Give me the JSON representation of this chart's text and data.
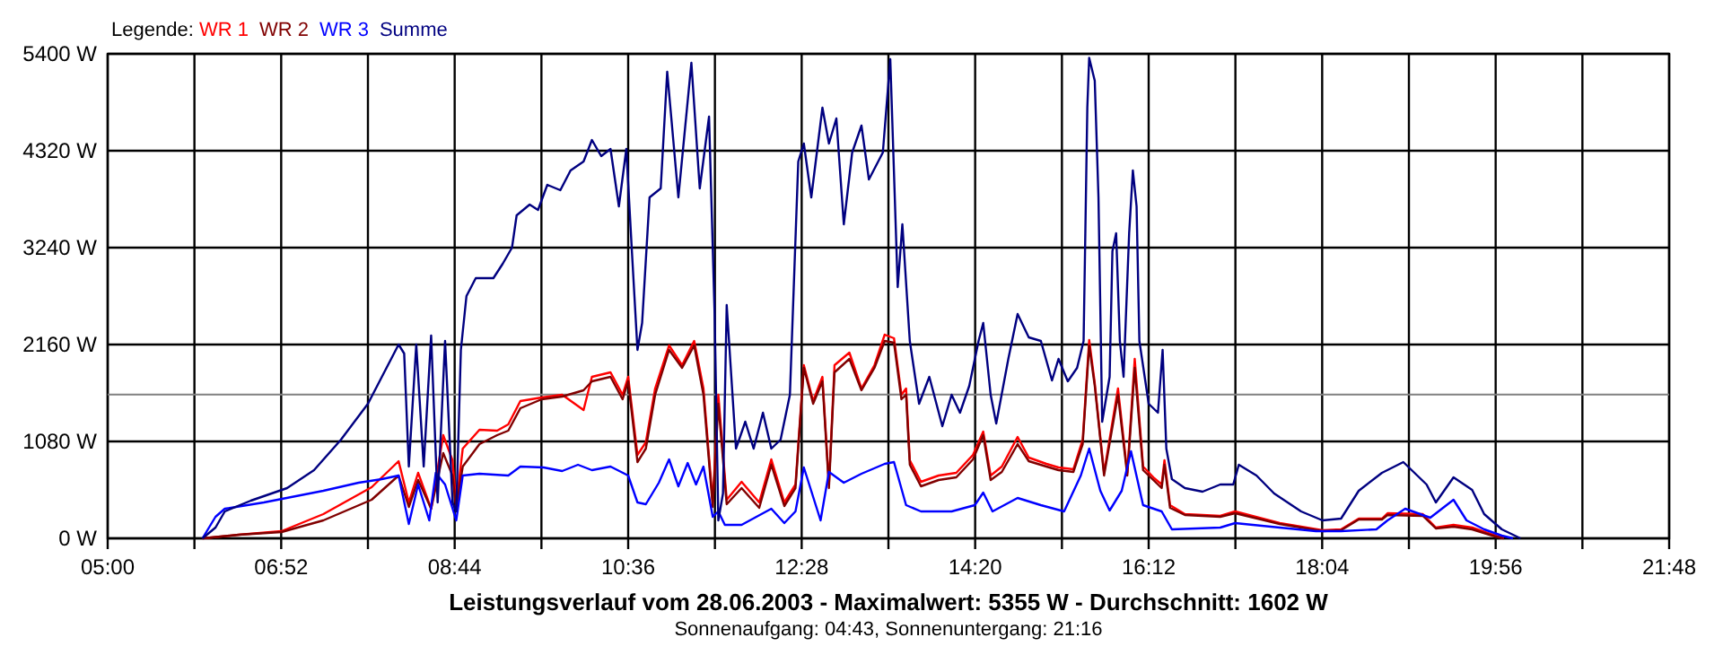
{
  "chart_data": {
    "type": "line",
    "title": "Leistungsverlauf vom 28.06.2003 - Maximalwert: 5355 W - Durchschnitt: 1602 W",
    "subtitle": "Sonnenaufgang: 04:43, Sonnenuntergang: 21:16",
    "legend_title": "Legende:",
    "legend": "top left",
    "grid": true,
    "marker": "none",
    "line_style": "solid",
    "xlim": [
      5,
      21.8
    ],
    "ylim": [
      0,
      5400
    ],
    "xticks": [
      {
        "value": 5,
        "label": "05:00"
      },
      {
        "value": 5.9333,
        "label": null
      },
      {
        "value": 6.8667,
        "label": "06:52"
      },
      {
        "value": 7.8,
        "label": null
      },
      {
        "value": 8.7333,
        "label": "08:44"
      },
      {
        "value": 9.6667,
        "label": null
      },
      {
        "value": 10.6,
        "label": "10:36"
      },
      {
        "value": 11.5333,
        "label": null
      },
      {
        "value": 12.4667,
        "label": "12:28"
      },
      {
        "value": 13.4,
        "label": null
      },
      {
        "value": 14.3333,
        "label": "14:20"
      },
      {
        "value": 15.2667,
        "label": null
      },
      {
        "value": 16.2,
        "label": "16:12"
      },
      {
        "value": 17.1333,
        "label": null
      },
      {
        "value": 18.0667,
        "label": "18:04"
      },
      {
        "value": 19,
        "label": null
      },
      {
        "value": 19.9333,
        "label": "19:56"
      },
      {
        "value": 20.8667,
        "label": null
      },
      {
        "value": 21.8,
        "label": "21:48"
      }
    ],
    "yticks": [
      {
        "value": 0,
        "label": "0 W"
      },
      {
        "value": 1080,
        "label": "1080 W"
      },
      {
        "value": 2160,
        "label": "2160 W"
      },
      {
        "value": 3240,
        "label": "3240 W"
      },
      {
        "value": 4320,
        "label": "4320 W"
      },
      {
        "value": 5400,
        "label": "5400 W"
      }
    ],
    "ref_lines": [
      {
        "axis": "y",
        "value": 1602,
        "label": null,
        "color": "#808080"
      }
    ],
    "series": [
      {
        "name": "WR 1",
        "color": "#ff0000",
        "x": [
          6.02,
          6.41,
          6.87,
          7.32,
          7.84,
          8.13,
          8.24,
          8.34,
          8.48,
          8.61,
          8.71,
          8.75,
          8.82,
          9.0,
          9.19,
          9.31,
          9.44,
          9.67,
          9.89,
          10.12,
          10.21,
          10.41,
          10.54,
          10.6,
          10.7,
          10.79,
          10.89,
          11.04,
          11.18,
          11.31,
          11.41,
          11.51,
          11.57,
          11.66,
          11.82,
          12.01,
          12.14,
          12.28,
          12.4,
          12.49,
          12.59,
          12.69,
          12.76,
          12.82,
          12.98,
          13.11,
          13.25,
          13.36,
          13.46,
          13.54,
          13.59,
          13.63,
          13.75,
          13.94,
          14.13,
          14.31,
          14.42,
          14.5,
          14.62,
          14.79,
          14.91,
          15.1,
          15.23,
          15.39,
          15.49,
          15.56,
          15.62,
          15.72,
          15.87,
          15.97,
          16.05,
          16.14,
          16.26,
          16.34,
          16.37,
          16.43,
          16.59,
          16.97,
          17.13,
          17.61,
          18.07,
          18.27,
          18.46,
          18.71,
          18.77,
          19.15,
          19.29,
          19.48,
          19.68,
          19.93,
          20.02
        ],
        "values": [
          0,
          40,
          80,
          270,
          570,
          860,
          400,
          730,
          330,
          1150,
          870,
          370,
          1000,
          1210,
          1200,
          1270,
          1530,
          1570,
          1600,
          1430,
          1800,
          1850,
          1600,
          1800,
          930,
          1070,
          1670,
          2150,
          1930,
          2200,
          1670,
          400,
          1600,
          430,
          630,
          400,
          880,
          400,
          600,
          1930,
          1530,
          1800,
          600,
          1930,
          2070,
          1670,
          1930,
          2270,
          2230,
          1600,
          1670,
          870,
          630,
          700,
          730,
          930,
          1190,
          700,
          800,
          1130,
          900,
          830,
          790,
          770,
          1100,
          2210,
          1730,
          730,
          1670,
          730,
          2000,
          800,
          670,
          600,
          870,
          370,
          270,
          250,
          300,
          170,
          90,
          100,
          220,
          220,
          280,
          270,
          120,
          150,
          120,
          30,
          0
        ]
      },
      {
        "name": "WR 2",
        "color": "#800000",
        "x": [
          6.02,
          6.41,
          6.87,
          7.32,
          7.84,
          8.13,
          8.24,
          8.34,
          8.48,
          8.61,
          8.71,
          8.75,
          8.82,
          9.0,
          9.19,
          9.31,
          9.44,
          9.67,
          9.89,
          10.12,
          10.21,
          10.41,
          10.54,
          10.6,
          10.7,
          10.79,
          10.89,
          11.04,
          11.18,
          11.31,
          11.41,
          11.51,
          11.57,
          11.66,
          11.82,
          12.01,
          12.14,
          12.28,
          12.4,
          12.49,
          12.59,
          12.69,
          12.76,
          12.82,
          12.98,
          13.11,
          13.25,
          13.36,
          13.46,
          13.54,
          13.59,
          13.63,
          13.75,
          13.94,
          14.13,
          14.31,
          14.42,
          14.5,
          14.62,
          14.79,
          14.91,
          15.1,
          15.23,
          15.39,
          15.49,
          15.56,
          15.62,
          15.72,
          15.87,
          15.97,
          16.05,
          16.14,
          16.26,
          16.34,
          16.37,
          16.43,
          16.59,
          16.97,
          17.13,
          17.61,
          18.07,
          18.27,
          18.46,
          18.71,
          18.77,
          19.15,
          19.29,
          19.48,
          19.68,
          19.93,
          20.02
        ],
        "values": [
          0,
          40,
          70,
          200,
          430,
          700,
          350,
          650,
          330,
          950,
          700,
          330,
          800,
          1050,
          1150,
          1200,
          1450,
          1550,
          1580,
          1650,
          1750,
          1800,
          1550,
          1750,
          850,
          1000,
          1600,
          2100,
          1900,
          2150,
          1600,
          350,
          1500,
          380,
          560,
          340,
          820,
          360,
          560,
          1900,
          1500,
          1750,
          560,
          1850,
          2000,
          1650,
          1900,
          2200,
          2180,
          1550,
          1600,
          820,
          580,
          650,
          680,
          880,
          1150,
          650,
          740,
          1050,
          860,
          800,
          760,
          740,
          1050,
          2150,
          1700,
          700,
          1600,
          700,
          1900,
          760,
          640,
          560,
          820,
          340,
          260,
          240,
          280,
          160,
          80,
          90,
          210,
          210,
          260,
          250,
          110,
          130,
          100,
          20,
          0
        ]
      },
      {
        "name": "WR 3",
        "color": "#0000ff",
        "x": [
          6.02,
          6.16,
          6.26,
          6.68,
          7.32,
          7.7,
          7.95,
          8.13,
          8.24,
          8.34,
          8.46,
          8.53,
          8.63,
          8.75,
          8.82,
          9.0,
          9.31,
          9.44,
          9.69,
          9.89,
          10.06,
          10.21,
          10.41,
          10.6,
          10.7,
          10.79,
          10.93,
          11.04,
          11.14,
          11.24,
          11.33,
          11.41,
          11.51,
          11.57,
          11.64,
          11.82,
          12.14,
          12.28,
          12.4,
          12.49,
          12.67,
          12.76,
          12.92,
          13.11,
          13.36,
          13.46,
          13.59,
          13.75,
          14.08,
          14.33,
          14.42,
          14.52,
          14.79,
          15.04,
          15.29,
          15.47,
          15.56,
          15.68,
          15.78,
          15.91,
          16.01,
          16.14,
          16.34,
          16.45,
          16.97,
          17.13,
          17.61,
          18.0,
          18.27,
          18.65,
          18.77,
          18.96,
          19.23,
          19.48,
          19.62,
          19.81,
          20.0,
          20.12
        ],
        "values": [
          0,
          240,
          330,
          400,
          530,
          620,
          660,
          700,
          160,
          600,
          200,
          730,
          600,
          200,
          700,
          720,
          700,
          800,
          790,
          750,
          820,
          760,
          800,
          700,
          400,
          380,
          620,
          880,
          580,
          840,
          600,
          800,
          240,
          300,
          150,
          150,
          330,
          170,
          300,
          790,
          200,
          740,
          620,
          720,
          830,
          850,
          370,
          300,
          300,
          370,
          510,
          300,
          450,
          370,
          300,
          700,
          1000,
          530,
          310,
          530,
          970,
          370,
          300,
          100,
          120,
          170,
          120,
          80,
          80,
          100,
          200,
          330,
          230,
          430,
          200,
          100,
          30,
          0
        ]
      },
      {
        "name": "Summe",
        "color": "#000080",
        "x": [
          6.02,
          6.16,
          6.26,
          6.54,
          6.93,
          7.22,
          7.51,
          7.8,
          7.99,
          8.13,
          8.19,
          8.24,
          8.32,
          8.4,
          8.48,
          8.55,
          8.63,
          8.71,
          8.75,
          8.8,
          8.86,
          8.96,
          9.15,
          9.25,
          9.35,
          9.4,
          9.54,
          9.63,
          9.73,
          9.87,
          9.98,
          10.12,
          10.21,
          10.31,
          10.41,
          10.5,
          10.58,
          10.64,
          10.7,
          10.75,
          10.83,
          10.95,
          11.02,
          11.14,
          11.28,
          11.37,
          11.47,
          11.53,
          11.57,
          11.62,
          11.66,
          11.76,
          11.86,
          11.95,
          12.05,
          12.14,
          12.24,
          12.34,
          12.43,
          12.49,
          12.57,
          12.69,
          12.76,
          12.84,
          12.92,
          13.01,
          13.11,
          13.19,
          13.34,
          13.42,
          13.5,
          13.55,
          13.63,
          13.73,
          13.84,
          13.98,
          14.08,
          14.17,
          14.27,
          14.37,
          14.42,
          14.5,
          14.56,
          14.69,
          14.79,
          14.91,
          15.04,
          15.16,
          15.23,
          15.33,
          15.43,
          15.5,
          15.54,
          15.56,
          15.62,
          15.66,
          15.7,
          15.78,
          15.81,
          15.85,
          15.89,
          15.93,
          15.99,
          16.03,
          16.07,
          16.1,
          16.2,
          16.3,
          16.35,
          16.39,
          16.45,
          16.59,
          16.78,
          16.97,
          17.11,
          17.17,
          17.36,
          17.55,
          17.84,
          18.07,
          18.27,
          18.46,
          18.71,
          18.94,
          19.19,
          19.29,
          19.48,
          19.68,
          19.81,
          20.0,
          20.2
        ],
        "values": [
          0,
          120,
          300,
          420,
          560,
          760,
          1100,
          1500,
          1880,
          2160,
          2060,
          800,
          2160,
          800,
          2260,
          400,
          2200,
          400,
          300,
          2100,
          2700,
          2900,
          2900,
          3060,
          3240,
          3600,
          3720,
          3660,
          3940,
          3880,
          4100,
          4200,
          4440,
          4260,
          4340,
          3700,
          4340,
          3200,
          2100,
          2400,
          3800,
          3900,
          5200,
          3800,
          5300,
          3900,
          4700,
          2500,
          200,
          500,
          2600,
          1000,
          1300,
          1000,
          1400,
          1000,
          1100,
          1600,
          4200,
          4400,
          3800,
          4800,
          4400,
          4680,
          3500,
          4300,
          4600,
          4000,
          4300,
          5340,
          2800,
          3500,
          2200,
          1500,
          1800,
          1250,
          1600,
          1400,
          1700,
          2200,
          2400,
          1600,
          1280,
          2000,
          2500,
          2240,
          2200,
          1760,
          2000,
          1750,
          1900,
          2200,
          4800,
          5355,
          5100,
          3800,
          1300,
          1800,
          3200,
          3400,
          2200,
          1800,
          3400,
          4100,
          3700,
          2200,
          1500,
          1400,
          2100,
          1000,
          660,
          560,
          520,
          600,
          600,
          820,
          700,
          500,
          300,
          200,
          220,
          530,
          730,
          850,
          600,
          400,
          680,
          540,
          270,
          100,
          0
        ]
      }
    ]
  }
}
